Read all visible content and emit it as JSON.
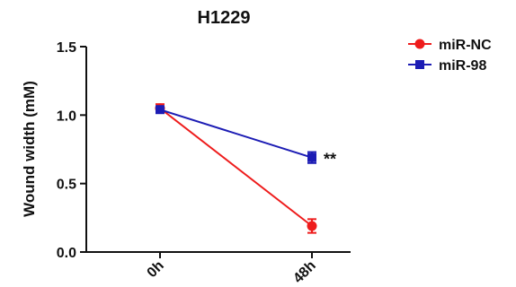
{
  "chart_data": {
    "type": "line",
    "title": "H1229",
    "ylabel": "Wound width (mM)",
    "xlabel": "",
    "categories": [
      "0h",
      "48h"
    ],
    "ylim": [
      0.0,
      1.5
    ],
    "yticks": [
      "0.0",
      "0.5",
      "1.0",
      "1.5"
    ],
    "series": [
      {
        "name": "miR-NC",
        "color": "#ee1c1c",
        "marker": "circle",
        "values": [
          1.05,
          0.19
        ],
        "errors": [
          0.03,
          0.05
        ]
      },
      {
        "name": "miR-98",
        "color": "#1c1cb4",
        "marker": "square",
        "values": [
          1.04,
          0.69
        ],
        "errors": [
          0.02,
          0.04
        ]
      }
    ],
    "annotations": [
      {
        "text": "**",
        "x": "48h",
        "series": "miR-98"
      }
    ],
    "legend_position": "top-right"
  }
}
